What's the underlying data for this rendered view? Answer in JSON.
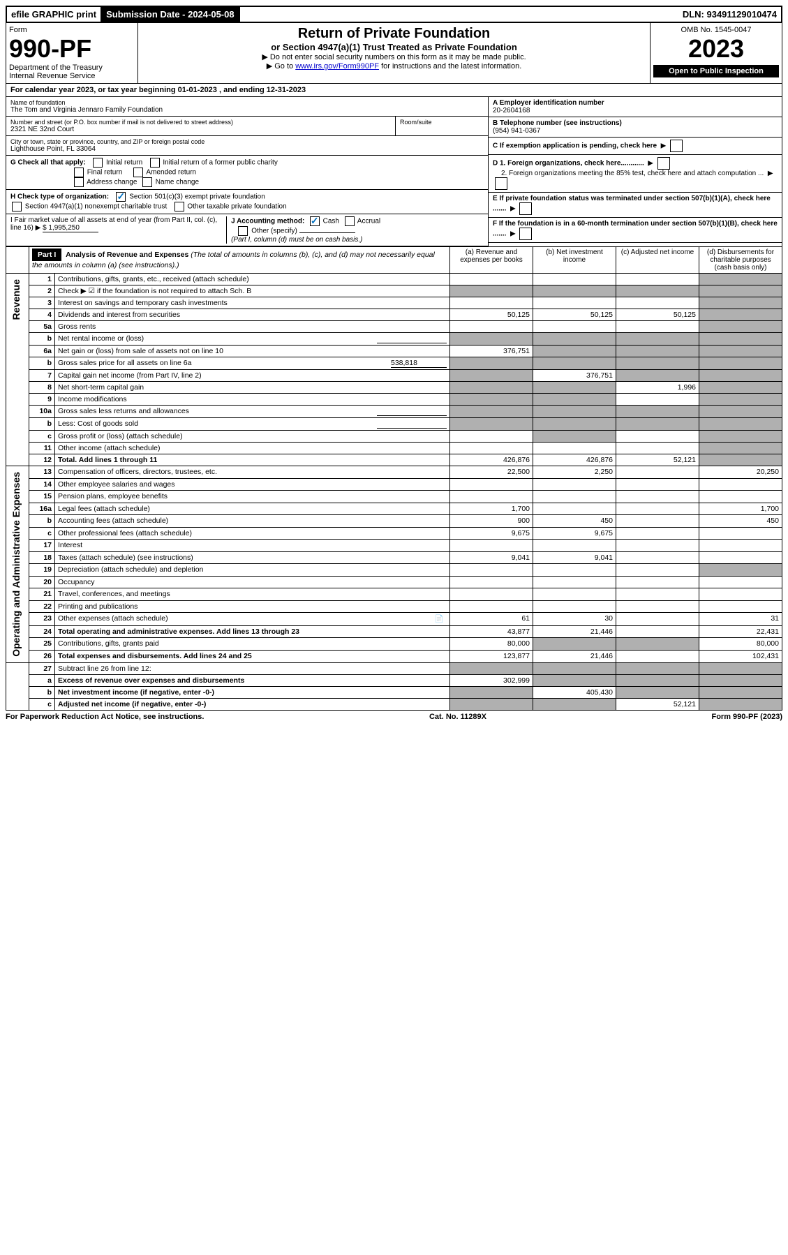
{
  "topbar": {
    "efile": "efile GRAPHIC print",
    "submission_label": "Submission Date - 2024-05-08",
    "dln": "DLN: 93491129010474"
  },
  "header": {
    "form_label": "Form",
    "form_number": "990-PF",
    "dept": "Department of the Treasury",
    "irs": "Internal Revenue Service",
    "title": "Return of Private Foundation",
    "subtitle": "or Section 4947(a)(1) Trust Treated as Private Foundation",
    "instr1": "▶ Do not enter social security numbers on this form as it may be made public.",
    "instr2_pre": "▶ Go to ",
    "instr2_link": "www.irs.gov/Form990PF",
    "instr2_post": " for instructions and the latest information.",
    "omb": "OMB No. 1545-0047",
    "year": "2023",
    "open": "Open to Public Inspection"
  },
  "calendar": "For calendar year 2023, or tax year beginning 01-01-2023               , and ending 12-31-2023",
  "info": {
    "name_label": "Name of foundation",
    "name": "The Tom and Virginia Jennaro Family Foundation",
    "addr_label": "Number and street (or P.O. box number if mail is not delivered to street address)",
    "addr": "2321 NE 32nd Court",
    "room_label": "Room/suite",
    "city_label": "City or town, state or province, country, and ZIP or foreign postal code",
    "city": "Lighthouse Point, FL  33064",
    "a_label": "A Employer identification number",
    "a_val": "20-2604168",
    "b_label": "B Telephone number (see instructions)",
    "b_val": "(954) 941-0367",
    "c_label": "C If exemption application is pending, check here",
    "d1": "D 1. Foreign organizations, check here............",
    "d2": "2. Foreign organizations meeting the 85% test, check here and attach computation ...",
    "e": "E  If private foundation status was terminated under section 507(b)(1)(A), check here .......",
    "f": "F  If the foundation is in a 60-month termination under section 507(b)(1)(B), check here .......",
    "g_label": "G Check all that apply:",
    "g_initial": "Initial return",
    "g_initial_former": "Initial return of a former public charity",
    "g_final": "Final return",
    "g_amended": "Amended return",
    "g_address": "Address change",
    "g_name": "Name change",
    "h_label": "H Check type of organization:",
    "h_501": "Section 501(c)(3) exempt private foundation",
    "h_4947": "Section 4947(a)(1) nonexempt charitable trust",
    "h_other": "Other taxable private foundation",
    "i_label": "I Fair market value of all assets at end of year (from Part II, col. (c), line 16) ▶",
    "i_val": "$  1,995,250",
    "j_label": "J Accounting method:",
    "j_cash": "Cash",
    "j_accrual": "Accrual",
    "j_other": "Other (specify)",
    "j_note": "(Part I, column (d) must be on cash basis.)"
  },
  "part1": {
    "label": "Part I",
    "title": "Analysis of Revenue and Expenses",
    "title_note": "(The total of amounts in columns (b), (c), and (d) may not necessarily equal the amounts in column (a) (see instructions).)",
    "col_a": "(a)   Revenue and expenses per books",
    "col_b": "(b)   Net investment income",
    "col_c": "(c)   Adjusted net income",
    "col_d": "(d)   Disbursements for charitable purposes (cash basis only)"
  },
  "rows": [
    {
      "n": "1",
      "desc": "Contributions, gifts, grants, etc., received (attach schedule)",
      "a": "",
      "b": "",
      "c": "",
      "d": "",
      "shade_d": true
    },
    {
      "n": "2",
      "desc": "Check ▶ ☑ if the foundation is not required to attach Sch. B",
      "a": "",
      "b": "",
      "c": "",
      "d": "",
      "shade_a": true,
      "shade_b": true,
      "shade_c": true,
      "shade_d": true,
      "bold_not": true
    },
    {
      "n": "3",
      "desc": "Interest on savings and temporary cash investments",
      "a": "",
      "b": "",
      "c": "",
      "d": "",
      "shade_d": true
    },
    {
      "n": "4",
      "desc": "Dividends and interest from securities",
      "a": "50,125",
      "b": "50,125",
      "c": "50,125",
      "d": "",
      "shade_d": true
    },
    {
      "n": "5a",
      "desc": "Gross rents",
      "a": "",
      "b": "",
      "c": "",
      "d": "",
      "shade_d": true
    },
    {
      "n": "b",
      "desc": "Net rental income or (loss)",
      "a": "",
      "b": "",
      "c": "",
      "d": "",
      "shade_a": true,
      "shade_b": true,
      "shade_c": true,
      "shade_d": true,
      "inline_box": true
    },
    {
      "n": "6a",
      "desc": "Net gain or (loss) from sale of assets not on line 10",
      "a": "376,751",
      "b": "",
      "c": "",
      "d": "",
      "shade_b": true,
      "shade_c": true,
      "shade_d": true
    },
    {
      "n": "b",
      "desc": "Gross sales price for all assets on line 6a",
      "inline_val": "538,818",
      "a": "",
      "b": "",
      "c": "",
      "d": "",
      "shade_a": true,
      "shade_b": true,
      "shade_c": true,
      "shade_d": true
    },
    {
      "n": "7",
      "desc": "Capital gain net income (from Part IV, line 2)",
      "a": "",
      "b": "376,751",
      "c": "",
      "d": "",
      "shade_a": true,
      "shade_c": true,
      "shade_d": true
    },
    {
      "n": "8",
      "desc": "Net short-term capital gain",
      "a": "",
      "b": "",
      "c": "1,996",
      "d": "",
      "shade_a": true,
      "shade_b": true,
      "shade_d": true
    },
    {
      "n": "9",
      "desc": "Income modifications",
      "a": "",
      "b": "",
      "c": "",
      "d": "",
      "shade_a": true,
      "shade_b": true,
      "shade_d": true
    },
    {
      "n": "10a",
      "desc": "Gross sales less returns and allowances",
      "a": "",
      "b": "",
      "c": "",
      "d": "",
      "shade_a": true,
      "shade_b": true,
      "shade_c": true,
      "shade_d": true,
      "inline_box": true
    },
    {
      "n": "b",
      "desc": "Less: Cost of goods sold",
      "a": "",
      "b": "",
      "c": "",
      "d": "",
      "shade_a": true,
      "shade_b": true,
      "shade_c": true,
      "shade_d": true,
      "inline_box": true
    },
    {
      "n": "c",
      "desc": "Gross profit or (loss) (attach schedule)",
      "a": "",
      "b": "",
      "c": "",
      "d": "",
      "shade_b": true,
      "shade_d": true
    },
    {
      "n": "11",
      "desc": "Other income (attach schedule)",
      "a": "",
      "b": "",
      "c": "",
      "d": "",
      "shade_d": true
    },
    {
      "n": "12",
      "desc": "Total. Add lines 1 through 11",
      "a": "426,876",
      "b": "426,876",
      "c": "52,121",
      "d": "",
      "bold": true,
      "shade_d": true
    }
  ],
  "expense_rows": [
    {
      "n": "13",
      "desc": "Compensation of officers, directors, trustees, etc.",
      "a": "22,500",
      "b": "2,250",
      "c": "",
      "d": "20,250"
    },
    {
      "n": "14",
      "desc": "Other employee salaries and wages",
      "a": "",
      "b": "",
      "c": "",
      "d": ""
    },
    {
      "n": "15",
      "desc": "Pension plans, employee benefits",
      "a": "",
      "b": "",
      "c": "",
      "d": ""
    },
    {
      "n": "16a",
      "desc": "Legal fees (attach schedule)",
      "a": "1,700",
      "b": "",
      "c": "",
      "d": "1,700"
    },
    {
      "n": "b",
      "desc": "Accounting fees (attach schedule)",
      "a": "900",
      "b": "450",
      "c": "",
      "d": "450"
    },
    {
      "n": "c",
      "desc": "Other professional fees (attach schedule)",
      "a": "9,675",
      "b": "9,675",
      "c": "",
      "d": ""
    },
    {
      "n": "17",
      "desc": "Interest",
      "a": "",
      "b": "",
      "c": "",
      "d": ""
    },
    {
      "n": "18",
      "desc": "Taxes (attach schedule) (see instructions)",
      "a": "9,041",
      "b": "9,041",
      "c": "",
      "d": ""
    },
    {
      "n": "19",
      "desc": "Depreciation (attach schedule) and depletion",
      "a": "",
      "b": "",
      "c": "",
      "d": "",
      "shade_d": true
    },
    {
      "n": "20",
      "desc": "Occupancy",
      "a": "",
      "b": "",
      "c": "",
      "d": ""
    },
    {
      "n": "21",
      "desc": "Travel, conferences, and meetings",
      "a": "",
      "b": "",
      "c": "",
      "d": ""
    },
    {
      "n": "22",
      "desc": "Printing and publications",
      "a": "",
      "b": "",
      "c": "",
      "d": ""
    },
    {
      "n": "23",
      "desc": "Other expenses (attach schedule)",
      "a": "61",
      "b": "30",
      "c": "",
      "d": "31",
      "icon": true
    },
    {
      "n": "24",
      "desc": "Total operating and administrative expenses. Add lines 13 through 23",
      "a": "43,877",
      "b": "21,446",
      "c": "",
      "d": "22,431",
      "bold": true
    },
    {
      "n": "25",
      "desc": "Contributions, gifts, grants paid",
      "a": "80,000",
      "b": "",
      "c": "",
      "d": "80,000",
      "shade_b": true,
      "shade_c": true
    },
    {
      "n": "26",
      "desc": "Total expenses and disbursements. Add lines 24 and 25",
      "a": "123,877",
      "b": "21,446",
      "c": "",
      "d": "102,431",
      "bold": true
    }
  ],
  "final_rows": [
    {
      "n": "27",
      "desc": "Subtract line 26 from line 12:",
      "a": "",
      "b": "",
      "c": "",
      "d": "",
      "shade_a": true,
      "shade_b": true,
      "shade_c": true,
      "shade_d": true
    },
    {
      "n": "a",
      "desc": "Excess of revenue over expenses and disbursements",
      "a": "302,999",
      "b": "",
      "c": "",
      "d": "",
      "bold": true,
      "shade_b": true,
      "shade_c": true,
      "shade_d": true
    },
    {
      "n": "b",
      "desc": "Net investment income (if negative, enter -0-)",
      "a": "",
      "b": "405,430",
      "c": "",
      "d": "",
      "bold": true,
      "shade_a": true,
      "shade_c": true,
      "shade_d": true
    },
    {
      "n": "c",
      "desc": "Adjusted net income (if negative, enter -0-)",
      "a": "",
      "b": "",
      "c": "52,121",
      "d": "",
      "bold": true,
      "shade_a": true,
      "shade_b": true,
      "shade_d": true
    }
  ],
  "side_labels": {
    "revenue": "Revenue",
    "expenses": "Operating and Administrative Expenses"
  },
  "footer": {
    "left": "For Paperwork Reduction Act Notice, see instructions.",
    "center": "Cat. No. 11289X",
    "right": "Form 990-PF (2023)"
  }
}
